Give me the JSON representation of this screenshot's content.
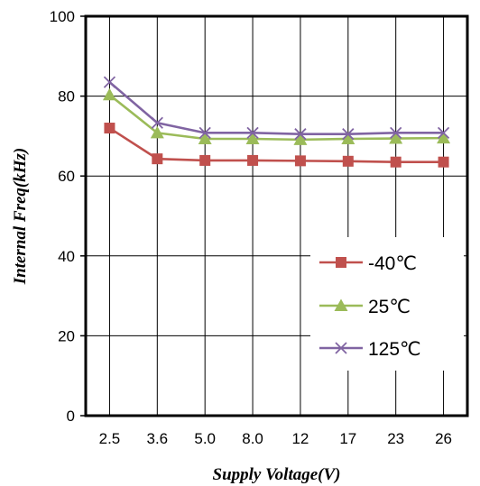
{
  "chart_data": {
    "type": "line",
    "title": "",
    "xlabel": "Supply Voltage(V)",
    "ylabel": "Internal Freq(kHz)",
    "categories": [
      "2.5",
      "3.6",
      "5.0",
      "8.0",
      "12",
      "17",
      "23",
      "26"
    ],
    "ylim": [
      0,
      100
    ],
    "yticks": [
      0,
      20,
      40,
      60,
      80,
      100
    ],
    "grid": true,
    "legend_position": "center-right",
    "series": [
      {
        "name": "-40℃",
        "color": "#c0504d",
        "marker": "square",
        "values": [
          72.0,
          64.3,
          63.9,
          63.9,
          63.8,
          63.7,
          63.5,
          63.5
        ]
      },
      {
        "name": "25℃",
        "color": "#9bbb59",
        "marker": "triangle",
        "values": [
          80.3,
          70.8,
          69.3,
          69.3,
          69.1,
          69.3,
          69.4,
          69.5
        ]
      },
      {
        "name": "125℃",
        "color": "#8064a2",
        "marker": "x",
        "values": [
          83.5,
          73.3,
          70.8,
          70.8,
          70.5,
          70.5,
          70.8,
          70.8
        ]
      }
    ]
  }
}
